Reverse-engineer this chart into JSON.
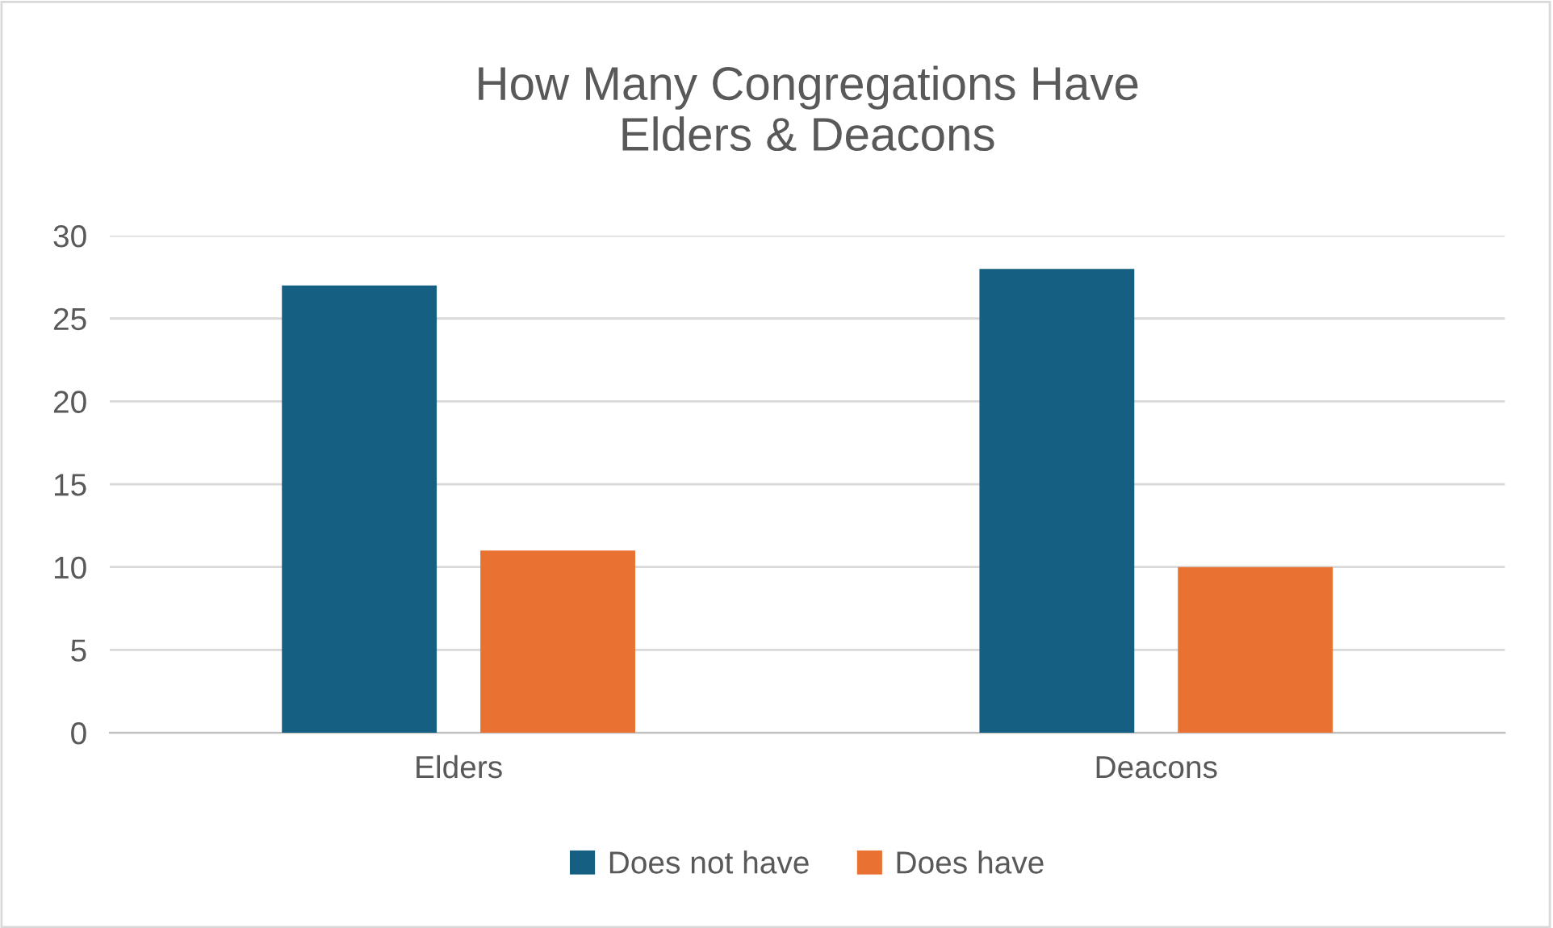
{
  "chart_data": {
    "type": "bar",
    "title": "How Many Congregations Have\nElders & Deacons",
    "categories": [
      "Elders",
      "Deacons"
    ],
    "series": [
      {
        "name": "Does not have",
        "color": "#156082",
        "values": [
          27,
          28
        ]
      },
      {
        "name": "Does have",
        "color": "#e97132",
        "values": [
          11,
          10
        ]
      }
    ],
    "ylim": [
      0,
      30
    ],
    "yticks": [
      0,
      5,
      10,
      15,
      20,
      25,
      30
    ],
    "grid": "y",
    "legend": "bottom"
  }
}
